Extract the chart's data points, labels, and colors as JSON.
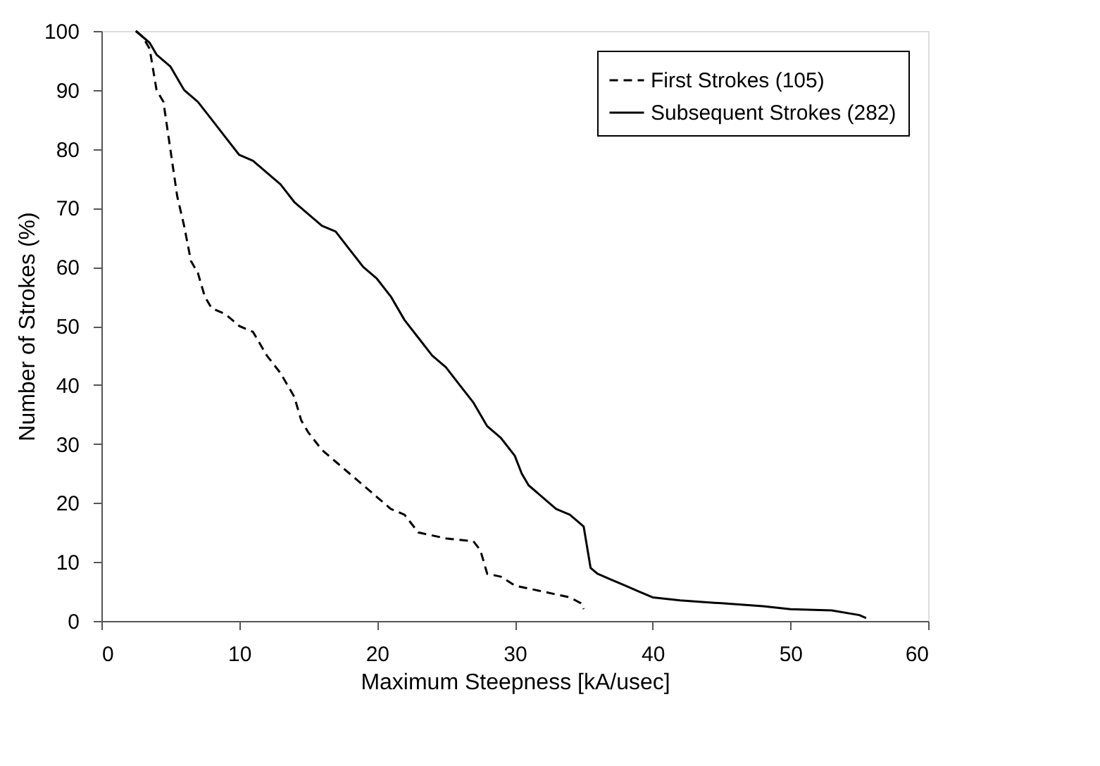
{
  "chart_data": {
    "type": "line",
    "xlabel": "Maximum Steepness [kA/usec]",
    "ylabel": "Number of Strokes (%)",
    "xlim": [
      0,
      60
    ],
    "ylim": [
      0,
      100
    ],
    "xticks": [
      0,
      10,
      20,
      30,
      40,
      50,
      60
    ],
    "yticks": [
      0,
      10,
      20,
      30,
      40,
      50,
      60,
      70,
      80,
      90,
      100
    ],
    "grid": false,
    "legend": "top right",
    "marker": "none",
    "series": [
      {
        "name": "First Strokes (105)",
        "color": "#000000",
        "line_style": "dashed",
        "x": [
          2.5,
          3,
          3.5,
          4,
          4.5,
          5,
          5.5,
          6,
          6.5,
          7,
          7.5,
          8,
          9,
          10,
          11,
          12,
          13,
          14,
          14.5,
          15,
          16,
          17,
          18,
          19,
          20,
          21,
          22,
          23,
          25,
          27,
          27.5,
          28,
          29,
          30,
          32,
          34,
          34.8,
          35
        ],
        "values": [
          100,
          99,
          97,
          90,
          88,
          80,
          72,
          67,
          61,
          59,
          55,
          53,
          52,
          50,
          49,
          45,
          42,
          38,
          34,
          32,
          29,
          27,
          25,
          23,
          21,
          19,
          18,
          15,
          14,
          13.5,
          12,
          8,
          7.5,
          6,
          5,
          4,
          3,
          2
        ]
      },
      {
        "name": "Subsequent Strokes (282)",
        "color": "#000000",
        "line_style": "solid",
        "x": [
          2.5,
          3.5,
          4,
          5,
          6,
          7,
          8,
          9,
          10,
          11,
          12,
          13,
          14,
          15,
          16,
          17,
          18,
          19,
          20,
          21,
          22,
          23,
          24,
          25,
          26,
          27,
          28,
          29,
          30,
          30.5,
          31,
          32,
          33,
          34,
          35,
          35.5,
          36,
          37,
          38,
          39,
          40,
          42,
          45,
          48,
          50,
          53,
          55,
          55.5
        ],
        "values": [
          100,
          98,
          96,
          94,
          90,
          88,
          85,
          82,
          79,
          78,
          76,
          74,
          71,
          69,
          67,
          66,
          63,
          60,
          58,
          55,
          51,
          48,
          45,
          43,
          40,
          37,
          33,
          31,
          28,
          25,
          23,
          21,
          19,
          18,
          16,
          9,
          8,
          7,
          6,
          5,
          4,
          3.5,
          3,
          2.5,
          2,
          1.8,
          1,
          0.5
        ]
      }
    ]
  }
}
